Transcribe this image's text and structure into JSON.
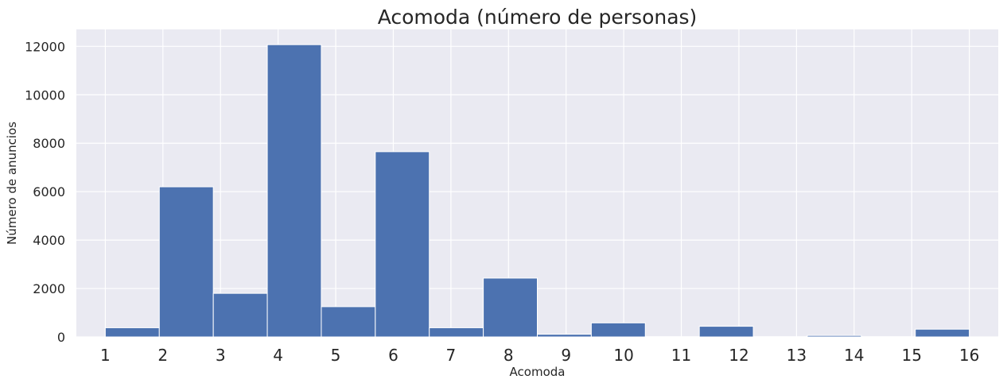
{
  "chart_data": {
    "type": "bar",
    "title": "Acomoda (número de personas)",
    "xlabel": "Acomoda",
    "ylabel": "Número de anuncios",
    "categories": [
      "1",
      "2",
      "3",
      "4",
      "5",
      "6",
      "7",
      "8",
      "9",
      "10",
      "11",
      "12",
      "13",
      "14",
      "15",
      "16"
    ],
    "values": [
      380,
      6200,
      1800,
      12070,
      1250,
      7650,
      380,
      2430,
      110,
      580,
      10,
      440,
      10,
      60,
      10,
      320
    ],
    "ylim": [
      0,
      12700
    ],
    "yticks": [
      "0",
      "2000",
      "4000",
      "6000",
      "8000",
      "10000",
      "12000"
    ],
    "grid": true,
    "bar_color": "#4c72b0",
    "background_color": "#eaeaf2",
    "grid_color": "#ffffff"
  }
}
